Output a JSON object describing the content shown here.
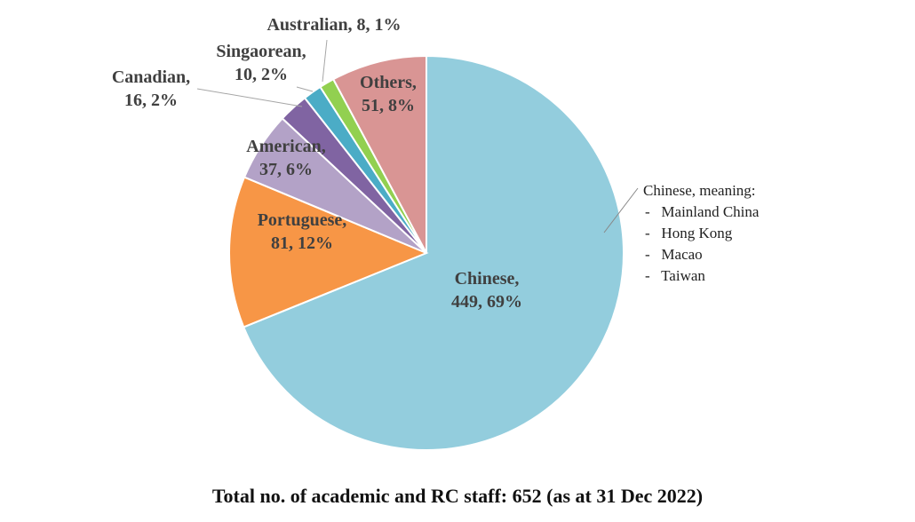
{
  "chart_data": {
    "type": "pie",
    "slices": [
      {
        "label": "Chinese",
        "value": 449,
        "percent": "69%",
        "color": "#93CDDD"
      },
      {
        "label": "Portuguese",
        "value": 81,
        "percent": "12%",
        "color": "#F79646"
      },
      {
        "label": "American",
        "value": 37,
        "percent": "6%",
        "color": "#B3A2C7"
      },
      {
        "label": "Canadian",
        "value": 16,
        "percent": "2%",
        "color": "#8064A2"
      },
      {
        "label": "Singaorean",
        "value": 10,
        "percent": "2%",
        "color": "#4BACC6"
      },
      {
        "label": "Australian",
        "value": 8,
        "percent": "1%",
        "color": "#92D050"
      },
      {
        "label": "Others",
        "value": 51,
        "percent": "8%",
        "color": "#D99594"
      }
    ],
    "annotation": {
      "title": "Chinese, meaning:",
      "items": [
        "-   Mainland China",
        "-   Hong Kong",
        "-   Macao",
        "-   Taiwan"
      ]
    },
    "caption": "Total no. of academic and RC staff: 652 (as at 31 Dec 2022)"
  }
}
